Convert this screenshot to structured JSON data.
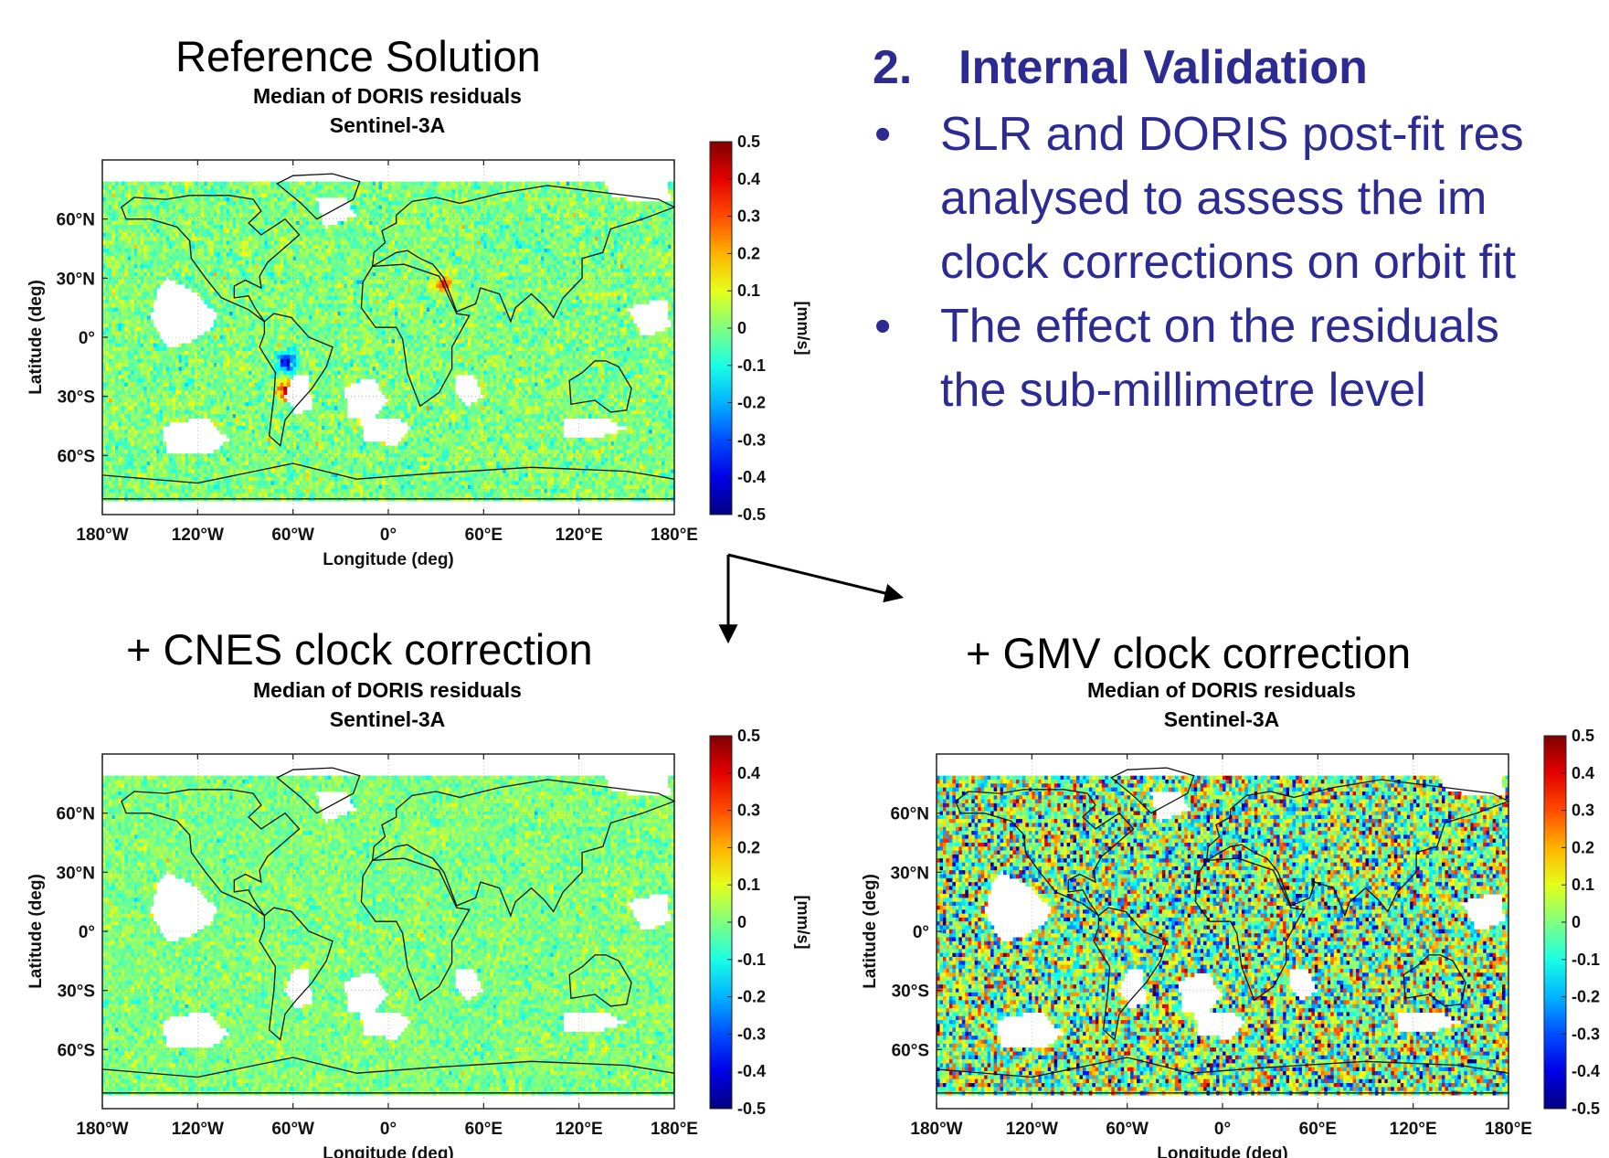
{
  "captions": {
    "reference": "Reference Solution",
    "cnes": "+ CNES clock correction",
    "gmv": "+ GMV clock correction"
  },
  "validation": {
    "heading_number": "2.",
    "heading_text": "Internal Validation",
    "bullets": [
      {
        "lines": [
          "SLR and DORIS post-fit res",
          "analysed to assess the im",
          "clock corrections on orbit fit"
        ]
      },
      {
        "lines": [
          "The effect on the residuals",
          "the sub-millimetre level"
        ]
      }
    ]
  },
  "chart_data": [
    {
      "type": "heatmap",
      "title": "Median of DORIS residuals",
      "subtitle": "Sentinel-3A",
      "xlabel": "Longitude (deg)",
      "ylabel": "Latitude (deg)",
      "xticks": [
        "180°W",
        "120°W",
        "60°W",
        "0°",
        "60°E",
        "120°E",
        "180°E"
      ],
      "yticks": [
        "60°N",
        "30°N",
        "0°",
        "30°S",
        "60°S"
      ],
      "xlim": [
        -180,
        180
      ],
      "ylim": [
        -90,
        90
      ],
      "colorbar": {
        "label": "[mm/s]",
        "min": -0.5,
        "max": 0.5,
        "ticks": [
          "0.5",
          "0.4",
          "0.3",
          "0.2",
          "0.1",
          "0",
          "-0.1",
          "-0.2",
          "-0.3",
          "-0.4",
          "-0.5"
        ]
      },
      "noise_level": 0.06,
      "hotspots": [
        {
          "lon": -64,
          "lat": -12,
          "value": -0.4
        },
        {
          "lon": -64,
          "lat": -27,
          "value": 0.42
        },
        {
          "lon": 35,
          "lat": 27,
          "value": 0.3
        }
      ]
    },
    {
      "type": "heatmap",
      "title": "Median of DORIS residuals",
      "subtitle": "Sentinel-3A",
      "xlabel": "Longitude (deg)",
      "ylabel": "Latitude (deg)",
      "xticks": [
        "180°W",
        "120°W",
        "60°W",
        "0°",
        "60°E",
        "120°E",
        "180°E"
      ],
      "yticks": [
        "60°N",
        "30°N",
        "0°",
        "30°S",
        "60°S"
      ],
      "xlim": [
        -180,
        180
      ],
      "ylim": [
        -90,
        90
      ],
      "colorbar": {
        "label": "[mm/s]",
        "min": -0.5,
        "max": 0.5,
        "ticks": [
          "0.5",
          "0.4",
          "0.3",
          "0.2",
          "0.1",
          "0",
          "-0.1",
          "-0.2",
          "-0.3",
          "-0.4",
          "-0.5"
        ]
      },
      "noise_level": 0.05,
      "hotspots": []
    },
    {
      "type": "heatmap",
      "title": "Median of DORIS residuals",
      "subtitle": "Sentinel-3A",
      "xlabel": "Longitude (deg)",
      "ylabel": "Latitude (deg)",
      "xticks": [
        "180°W",
        "120°W",
        "60°W",
        "0°",
        "60°E",
        "120°E",
        "180°E"
      ],
      "yticks": [
        "60°N",
        "30°N",
        "0°",
        "30°S",
        "60°S"
      ],
      "xlim": [
        -180,
        180
      ],
      "ylim": [
        -90,
        90
      ],
      "colorbar": {
        "label": "",
        "min": -0.5,
        "max": 0.5,
        "ticks": [
          "0.5",
          "0.4",
          "0.3",
          "0.2",
          "0.1",
          "0",
          "-0.1",
          "-0.2",
          "-0.3",
          "-0.4",
          "-0.5"
        ]
      },
      "noise_level": 0.2,
      "hotspots": []
    }
  ]
}
